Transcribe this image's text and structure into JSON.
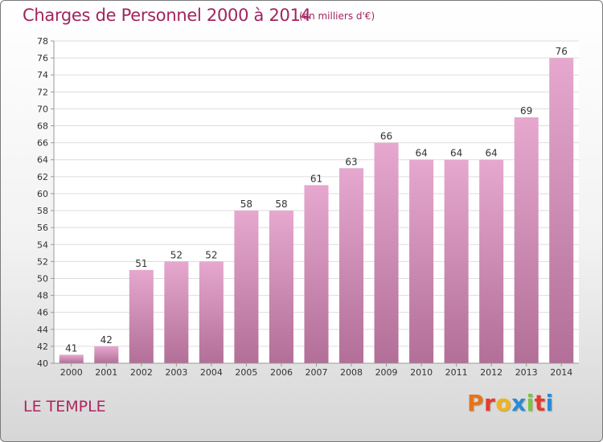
{
  "chart_data": {
    "type": "bar",
    "title": "Charges de Personnel 2000 à 2014",
    "subtitle": "(en milliers d'€)",
    "categories": [
      "2000",
      "2001",
      "2002",
      "2003",
      "2004",
      "2005",
      "2006",
      "2007",
      "2008",
      "2009",
      "2010",
      "2011",
      "2012",
      "2013",
      "2014"
    ],
    "values": [
      41,
      42,
      51,
      52,
      52,
      58,
      58,
      61,
      63,
      66,
      64,
      64,
      64,
      69,
      76
    ],
    "ylim": [
      40,
      78
    ],
    "yticks": [
      40,
      42,
      44,
      46,
      48,
      50,
      52,
      54,
      56,
      58,
      60,
      62,
      64,
      66,
      68,
      70,
      72,
      74,
      76,
      78
    ],
    "grid": true,
    "bar_color_top": "#e6a8cf",
    "bar_color_bottom": "#b26f97",
    "grid_color": "#dddddd"
  },
  "footer": {
    "commune": "LE TEMPLE",
    "brand": "Proxiti"
  },
  "colors": {
    "title": "#a2245f",
    "brand_letters": [
      "#e8731a",
      "#e63b2a",
      "#f2b419",
      "#2a8ad6",
      "#7cc242",
      "#e63b2a",
      "#2a8ad6"
    ]
  }
}
